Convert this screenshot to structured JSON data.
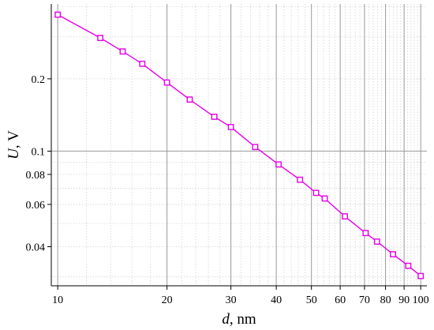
{
  "chart_data": {
    "type": "line",
    "x_scale": "log",
    "y_scale": "log",
    "xlim": [
      9.6,
      104
    ],
    "ylim": [
      0.0275,
      0.41
    ],
    "grid": true,
    "legend": "none",
    "xlabel": {
      "symbol": "d",
      "unit": ", nm"
    },
    "ylabel": {
      "symbol": "U",
      "unit": ", V"
    },
    "x_ticks": [
      {
        "value": 10,
        "label": "10"
      },
      {
        "value": 20,
        "label": "20"
      },
      {
        "value": 30,
        "label": "30"
      },
      {
        "value": 40,
        "label": "40"
      },
      {
        "value": 50,
        "label": "50"
      },
      {
        "value": 60,
        "label": "60"
      },
      {
        "value": 70,
        "label": "70"
      },
      {
        "value": 80,
        "label": "80"
      },
      {
        "value": 90,
        "label": "90"
      },
      {
        "value": 100,
        "label": "100"
      }
    ],
    "y_ticks": [
      {
        "value": 0.04,
        "label": "0.04"
      },
      {
        "value": 0.06,
        "label": "0.06"
      },
      {
        "value": 0.08,
        "label": "0.08"
      },
      {
        "value": 0.1,
        "label": "0.1"
      },
      {
        "value": 0.2,
        "label": "0.2"
      }
    ],
    "x_major_grid": [
      10,
      20,
      30,
      40,
      50,
      60,
      70,
      80,
      90,
      100
    ],
    "x_minor_grid": [
      12,
      14,
      16,
      18,
      22,
      24,
      26,
      28,
      32,
      34,
      36,
      38,
      42,
      44,
      46,
      48,
      52,
      54,
      56,
      58,
      62,
      64,
      66,
      68,
      72,
      74,
      76,
      78,
      82,
      84,
      86,
      88,
      92,
      94,
      96,
      98
    ],
    "y_major_grid": [
      0.1
    ],
    "y_minor_grid": [
      0.03,
      0.04,
      0.05,
      0.06,
      0.07,
      0.08,
      0.09,
      0.2,
      0.3,
      0.4
    ],
    "series": [
      {
        "color": "#e600e6",
        "marker": "square-open",
        "x": [
          10,
          13.1,
          15.1,
          17.1,
          20,
          23.1,
          27,
          30,
          35,
          40.6,
          46.5,
          51.5,
          54.4,
          61.8,
          70.5,
          75.8,
          83.9,
          92.4,
          100
        ],
        "y": [
          0.37,
          0.296,
          0.26,
          0.231,
          0.193,
          0.164,
          0.139,
          0.126,
          0.104,
          0.088,
          0.076,
          0.067,
          0.0635,
          0.0535,
          0.0456,
          0.042,
          0.0372,
          0.0333,
          0.0302
        ]
      }
    ]
  }
}
